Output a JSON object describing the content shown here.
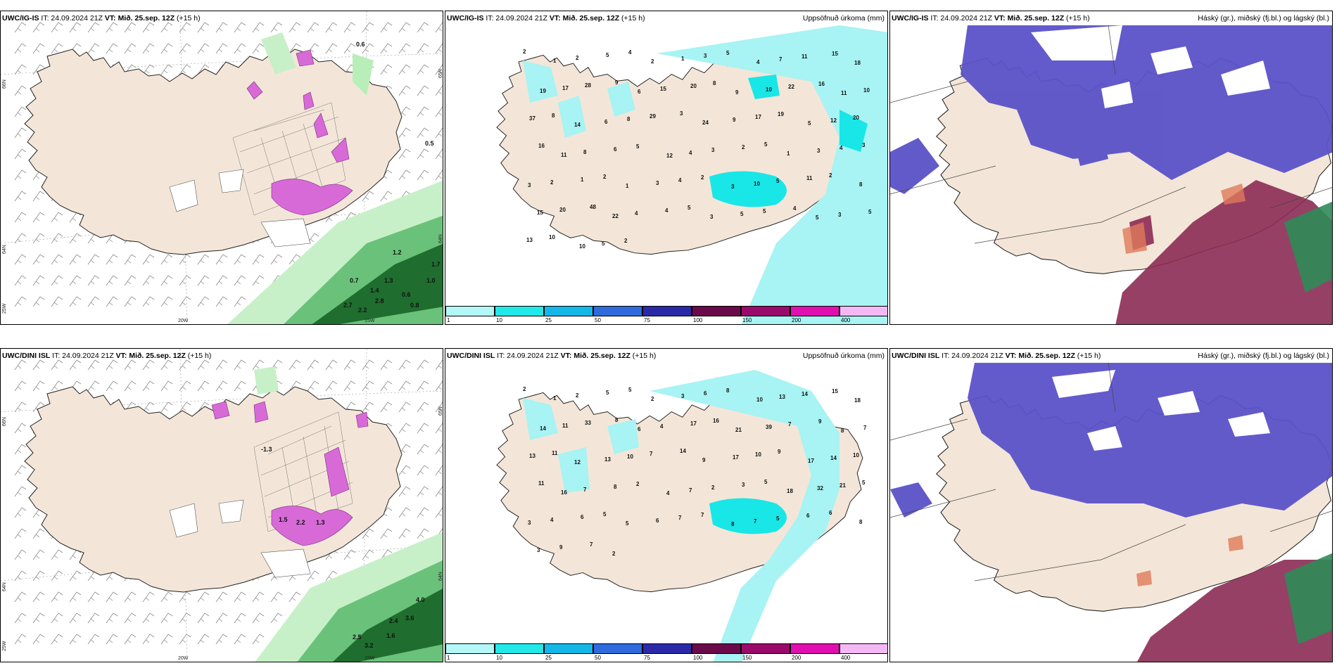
{
  "colors": {
    "land": "#f3e6d8",
    "sea": "#ffffff",
    "precip_light": "#a8f3f3",
    "precip_mid": "#19e6e6",
    "cloud_high": "#5b52c8",
    "cloud_mid": "#8c2b55",
    "cloud_low": "#2e8b57",
    "wind_barb": "#888888",
    "magenta": "#d86ad8",
    "green_dark": "#1f6e2f"
  },
  "panels": [
    {
      "id": "p1",
      "model": "UWC/IG-IS",
      "it": "IT: 24.09.2024 21Z",
      "vt_label": "VT:",
      "vt": "Mið. 25.sep. 12Z",
      "lead": "(+15 h)",
      "title_right": "",
      "numbers": [
        "0.6",
        "0.5",
        "1.2",
        "1.7",
        "0.7",
        "1.3",
        "1.0",
        "1.4",
        "0.6",
        "0.8",
        "2.7",
        "2.2",
        "2.8"
      ],
      "axis": [
        "66N",
        "64N",
        "25W",
        "20W",
        "15W",
        "65N",
        "64N"
      ]
    },
    {
      "id": "p2",
      "model": "UWC/IG-IS",
      "it": "IT: 24.09.2024 21Z",
      "vt_label": "VT:",
      "vt": "Mið. 25.sep. 12Z",
      "lead": "(+15 h)",
      "title_right": "Uppsöfnuð úrkoma (mm)",
      "numbers": [
        "2",
        "1",
        "2",
        "5",
        "4",
        "2",
        "1",
        "3",
        "5",
        "4",
        "7",
        "11",
        "15",
        "18",
        "19",
        "17",
        "28",
        "9",
        "6",
        "15",
        "20",
        "8",
        "9",
        "10",
        "22",
        "16",
        "11",
        "10",
        "37",
        "8",
        "14",
        "6",
        "8",
        "29",
        "3",
        "24",
        "9",
        "17",
        "19",
        "5",
        "12",
        "20",
        "16",
        "11",
        "8",
        "6",
        "5",
        "12",
        "4",
        "3",
        "2",
        "5",
        "1",
        "3",
        "4",
        "3",
        "3",
        "2",
        "1",
        "2",
        "1",
        "3",
        "4",
        "2",
        "3",
        "10",
        "5",
        "11",
        "2",
        "8",
        "15",
        "20",
        "48",
        "22",
        "4",
        "4",
        "5",
        "3",
        "5",
        "5",
        "4",
        "5",
        "3",
        "5",
        "13",
        "10",
        "10",
        "5",
        "2"
      ],
      "colorbar": [
        "1",
        "10",
        "25",
        "50",
        "75",
        "100",
        "150",
        "200",
        "400"
      ]
    },
    {
      "id": "p3",
      "model": "UWC/IG-IS",
      "it": "IT: 24.09.2024 21Z",
      "vt_label": "VT:",
      "vt": "Mið. 25.sep. 12Z",
      "lead": "(+15 h)",
      "title_right": "Háský (gr.), miðský (fj.bl.) og lágský (bl.)"
    },
    {
      "id": "p4",
      "model": "UWC/DINI ISL",
      "it": "IT: 24.09.2024 21Z",
      "vt_label": "VT:",
      "vt": "Mið. 25.sep. 12Z",
      "lead": "(+15 h)",
      "title_right": "",
      "numbers": [
        "-1.3",
        "1.5",
        "2.2",
        "1.3",
        "4.0",
        "2.4",
        "3.6",
        "2.5",
        "3.2",
        "1.6"
      ],
      "axis": [
        "66N",
        "64N",
        "25W",
        "20W",
        "15W",
        "65N",
        "64N"
      ]
    },
    {
      "id": "p5",
      "model": "UWC/DINI ISL",
      "it": "IT: 24.09.2024 21Z",
      "vt_label": "VT:",
      "vt": "Mið. 25.sep. 12Z",
      "lead": "(+15 h)",
      "title_right": "Uppsöfnuð úrkoma (mm)",
      "numbers": [
        "2",
        "1",
        "2",
        "5",
        "5",
        "2",
        "3",
        "6",
        "8",
        "10",
        "13",
        "14",
        "15",
        "18",
        "14",
        "11",
        "33",
        "8",
        "6",
        "4",
        "17",
        "16",
        "21",
        "39",
        "7",
        "9",
        "8",
        "7",
        "13",
        "11",
        "12",
        "13",
        "10",
        "7",
        "14",
        "9",
        "17",
        "10",
        "9",
        "17",
        "14",
        "10",
        "11",
        "16",
        "7",
        "8",
        "2",
        "4",
        "7",
        "2",
        "3",
        "5",
        "18",
        "32",
        "21",
        "5",
        "3",
        "4",
        "6",
        "5",
        "5",
        "6",
        "7",
        "7",
        "8",
        "7",
        "5",
        "6",
        "6",
        "8",
        "3",
        "9",
        "7",
        "2"
      ],
      "colorbar": [
        "1",
        "10",
        "25",
        "50",
        "75",
        "100",
        "150",
        "200",
        "400"
      ]
    },
    {
      "id": "p6",
      "model": "UWC/DINI ISL",
      "it": "IT: 24.09.2024 21Z",
      "vt_label": "VT:",
      "vt": "Mið. 25.sep. 12Z",
      "lead": "(+15 h)",
      "title_right": "Háský (gr.), miðský (fj.bl.) og lágský (bl.)"
    }
  ],
  "colorbar_colors": [
    "#b4f7f7",
    "#22e8e8",
    "#14b8e8",
    "#2f6bdc",
    "#2a2aa8",
    "#6a0a4a",
    "#9a0a6a",
    "#e010b0",
    "#f4b8f4"
  ]
}
